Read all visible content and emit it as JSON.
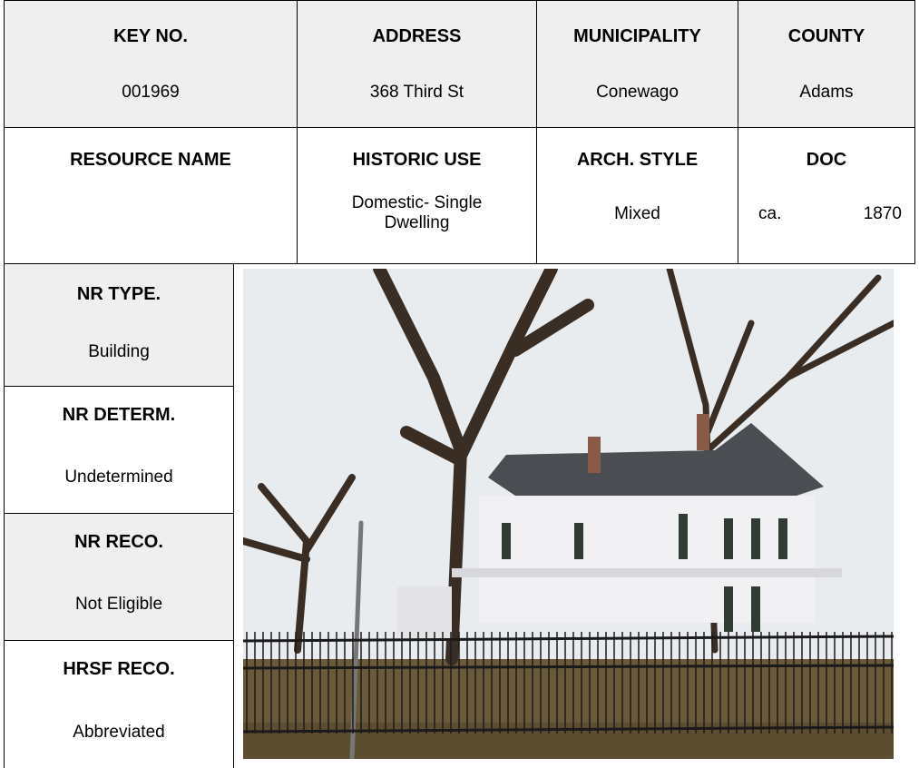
{
  "header_row": [
    {
      "label": "KEY NO.",
      "value": "001969"
    },
    {
      "label": "ADDRESS",
      "value": "368 Third St"
    },
    {
      "label": "MUNICIPALITY",
      "value": "Conewago"
    },
    {
      "label": "COUNTY",
      "value": "Adams"
    }
  ],
  "resource_row": {
    "resource_name": {
      "label": "RESOURCE NAME"
    },
    "historic_use": {
      "label": "HISTORIC USE",
      "value": "Domestic- Single Dwelling"
    },
    "arch_style": {
      "label": "ARCH. STYLE",
      "value": "Mixed"
    },
    "doc": {
      "label": "DOC",
      "prefix": "ca.",
      "year": "1870"
    }
  },
  "side_fields": [
    {
      "label": "NR TYPE.",
      "value": "Building"
    },
    {
      "label": "NR DETERM.",
      "value": "Undetermined"
    },
    {
      "label": "NR RECO.",
      "value": "Not Eligible"
    },
    {
      "label": "HRSF RECO.",
      "value": "Abbreviated"
    }
  ]
}
